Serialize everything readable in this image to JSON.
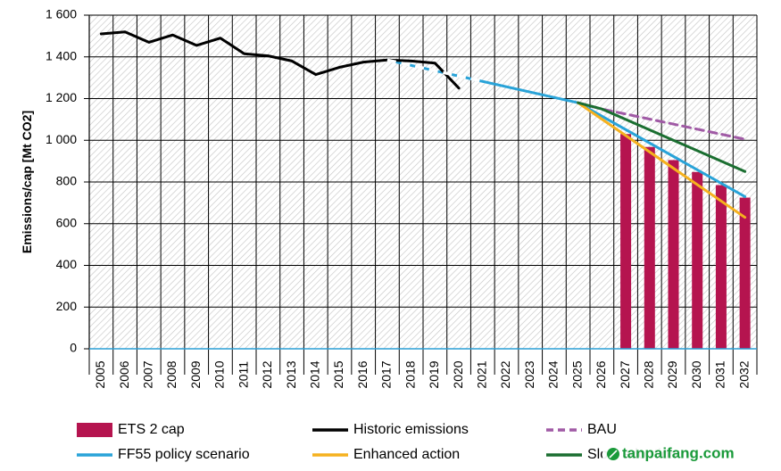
{
  "chart_data": {
    "type": "line",
    "ylabel": "Emissions/cap [Mt CO2]",
    "ylim": [
      0,
      1600
    ],
    "yticks": [
      0,
      200,
      400,
      600,
      800,
      1000,
      1200,
      1400,
      1600
    ],
    "ytick_labels": [
      "0",
      "200",
      "400",
      "600",
      "800",
      "1 000",
      "1 200",
      "1 400",
      "1 600"
    ],
    "x": [
      "2005",
      "2006",
      "2007",
      "2008",
      "2009",
      "2010",
      "2011",
      "2012",
      "2013",
      "2014",
      "2015",
      "2016",
      "2017",
      "2018",
      "2019",
      "2020",
      "2021",
      "2022",
      "2023",
      "2024",
      "2025",
      "2026",
      "2027",
      "2028",
      "2029",
      "2030",
      "2031",
      "2032"
    ],
    "grid": true,
    "bars": {
      "name": "ETS 2 cap",
      "color": "#b5144f",
      "points": [
        [
          2027,
          1030
        ],
        [
          2028,
          968
        ],
        [
          2029,
          905
        ],
        [
          2030,
          848
        ],
        [
          2031,
          785
        ],
        [
          2032,
          725
        ]
      ]
    },
    "series": [
      {
        "name": "FF55 policy scenario",
        "color": "#29a3d8",
        "style": "solid",
        "points": [
          [
            2017,
            1385
          ],
          [
            2025,
            1180
          ],
          [
            2032,
            730
          ]
        ]
      },
      {
        "name": "Historic emissions",
        "color": "#000000",
        "style": "solid",
        "points": [
          [
            2005,
            1510
          ],
          [
            2006,
            1520
          ],
          [
            2007,
            1470
          ],
          [
            2008,
            1505
          ],
          [
            2009,
            1455
          ],
          [
            2010,
            1490
          ],
          [
            2011,
            1415
          ],
          [
            2012,
            1405
          ],
          [
            2013,
            1380
          ],
          [
            2014,
            1315
          ],
          [
            2015,
            1350
          ],
          [
            2016,
            1375
          ],
          [
            2017,
            1385
          ],
          [
            2018,
            1380
          ],
          [
            2019,
            1370
          ],
          [
            2020,
            1250
          ]
        ]
      },
      {
        "name": "BAU",
        "color": "#a05aa5",
        "style": "dashed",
        "points": [
          [
            2025,
            1180
          ],
          [
            2026,
            1150
          ],
          [
            2032,
            1005
          ]
        ]
      },
      {
        "name": "Enhanced action",
        "color": "#f5b11e",
        "style": "solid",
        "points": [
          [
            2025,
            1180
          ],
          [
            2032,
            630
          ]
        ]
      },
      {
        "name": "Slow adoption",
        "color": "#1a6e30",
        "style": "solid",
        "points": [
          [
            2025,
            1180
          ],
          [
            2026,
            1150
          ],
          [
            2032,
            850
          ]
        ]
      }
    ],
    "legend": [
      "ETS 2 cap",
      "Historic emissions",
      "BAU",
      "FF55 policy scenario",
      "Enhanced action",
      "Slow adoption"
    ],
    "legend_position": "bottom"
  },
  "watermark": {
    "text": "tanpaifang.com",
    "color": "#1a9a3a"
  }
}
